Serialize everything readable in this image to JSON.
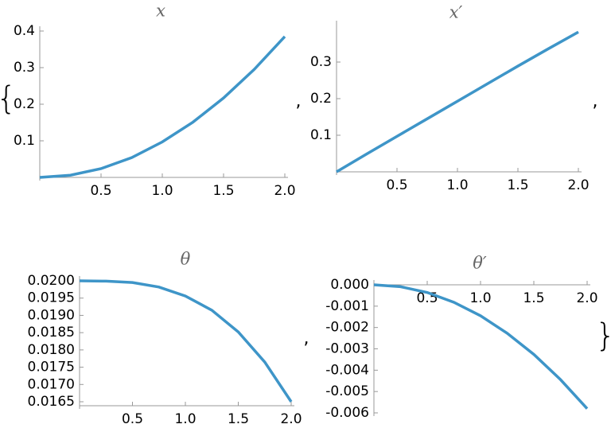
{
  "delimiters": {
    "open": "{",
    "separator": ",",
    "close": "}"
  },
  "chart_data": [
    {
      "type": "line",
      "title": "x",
      "color": "#3e95c8",
      "x": [
        0,
        0.25,
        0.5,
        0.75,
        1,
        1.25,
        1.5,
        1.75,
        2
      ],
      "values": [
        0,
        0.006,
        0.024,
        0.054,
        0.097,
        0.151,
        0.217,
        0.295,
        0.385
      ],
      "xlim": [
        0,
        2
      ],
      "xticks": [
        0.5,
        {
          "value": 1,
          "label": "1.0"
        },
        1.5,
        {
          "value": 2,
          "label": "2.0"
        }
      ],
      "ylim": [
        0,
        0.4
      ],
      "yticks": [
        0.1,
        0.2,
        0.3,
        0.4
      ]
    },
    {
      "type": "line",
      "title": "x′",
      "color": "#3e95c8",
      "x": [
        0,
        0.25,
        0.5,
        0.75,
        1,
        1.25,
        1.5,
        1.75,
        2
      ],
      "values": [
        0,
        0.049,
        0.097,
        0.145,
        0.193,
        0.241,
        0.289,
        0.336,
        0.382
      ],
      "xlim": [
        0,
        2
      ],
      "xticks": [
        0.5,
        {
          "value": 1,
          "label": "1.0"
        },
        1.5,
        {
          "value": 2,
          "label": "2.0"
        }
      ],
      "ylim": [
        0,
        0.4
      ],
      "yticks": [
        0.1,
        0.2,
        0.3
      ]
    },
    {
      "type": "line",
      "title": "θ",
      "color": "#3e95c8",
      "x": [
        0,
        0.25,
        0.5,
        0.75,
        1,
        1.25,
        1.5,
        1.75,
        2
      ],
      "values": [
        0.02,
        0.01999,
        0.01995,
        0.01982,
        0.01956,
        0.01915,
        0.01852,
        0.01765,
        0.0165
      ],
      "xlim": [
        0,
        2
      ],
      "xticks": [
        0.5,
        {
          "value": 1,
          "label": "1.0"
        },
        1.5,
        {
          "value": 2,
          "label": "2.0"
        }
      ],
      "ylim": [
        0.0165,
        0.02
      ],
      "yticks": [
        {
          "value": 0.0165,
          "label": "0.0165"
        },
        {
          "value": 0.017,
          "label": "0.0170"
        },
        {
          "value": 0.0175,
          "label": "0.0175"
        },
        {
          "value": 0.018,
          "label": "0.0180"
        },
        {
          "value": 0.0185,
          "label": "0.0185"
        },
        {
          "value": 0.019,
          "label": "0.0190"
        },
        {
          "value": 0.0195,
          "label": "0.0195"
        },
        {
          "value": 0.02,
          "label": "0.0200"
        }
      ]
    },
    {
      "type": "line",
      "title": "θ′",
      "color": "#3e95c8",
      "x": [
        0,
        0.25,
        0.5,
        0.75,
        1,
        1.25,
        1.5,
        1.75,
        2
      ],
      "values": [
        0,
        -9e-05,
        -0.00036,
        -0.00082,
        -0.00145,
        -0.00227,
        -0.00326,
        -0.00444,
        -0.0058
      ],
      "xlim": [
        0,
        2
      ],
      "xticks": [
        0.5,
        {
          "value": 1,
          "label": "1.0"
        },
        1.5,
        {
          "value": 2,
          "label": "2.0"
        }
      ],
      "ylim": [
        -0.006,
        0
      ],
      "yticks": [
        {
          "value": -0.006,
          "label": "-0.006"
        },
        {
          "value": -0.005,
          "label": "-0.005"
        },
        {
          "value": -0.004,
          "label": "-0.004"
        },
        {
          "value": -0.003,
          "label": "-0.003"
        },
        {
          "value": -0.002,
          "label": "-0.002"
        },
        {
          "value": -0.001,
          "label": "-0.001"
        },
        {
          "value": 0,
          "label": "0.000"
        }
      ]
    }
  ]
}
